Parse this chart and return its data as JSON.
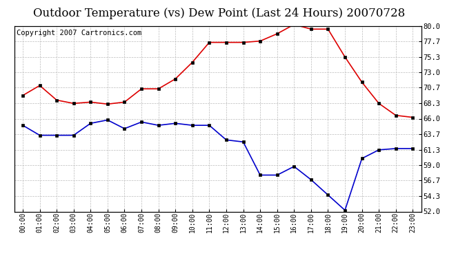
{
  "title": "Outdoor Temperature (vs) Dew Point (Last 24 Hours) 20070728",
  "copyright": "Copyright 2007 Cartronics.com",
  "x_labels": [
    "00:00",
    "01:00",
    "02:00",
    "03:00",
    "04:00",
    "05:00",
    "06:00",
    "07:00",
    "08:00",
    "09:00",
    "10:00",
    "11:00",
    "12:00",
    "13:00",
    "14:00",
    "15:00",
    "16:00",
    "17:00",
    "18:00",
    "19:00",
    "20:00",
    "21:00",
    "22:00",
    "23:00"
  ],
  "temp_values": [
    69.5,
    71.0,
    68.8,
    68.3,
    68.5,
    68.2,
    68.5,
    70.5,
    70.5,
    72.0,
    74.5,
    77.5,
    77.5,
    77.5,
    77.7,
    78.8,
    80.2,
    79.5,
    79.5,
    75.3,
    71.5,
    68.3,
    66.5,
    66.2
  ],
  "dew_values": [
    65.0,
    63.5,
    63.5,
    63.5,
    65.3,
    65.8,
    64.5,
    65.5,
    65.0,
    65.3,
    65.0,
    65.0,
    62.8,
    62.5,
    57.5,
    57.5,
    58.8,
    56.8,
    54.5,
    52.2,
    60.0,
    61.3,
    61.5,
    61.5
  ],
  "temp_color": "#dd0000",
  "dew_color": "#0000cc",
  "bg_color": "#ffffff",
  "plot_bg_color": "#ffffff",
  "grid_color": "#bbbbbb",
  "ylim": [
    52.0,
    80.0
  ],
  "yticks": [
    52.0,
    54.3,
    56.7,
    59.0,
    61.3,
    63.7,
    66.0,
    68.3,
    70.7,
    73.0,
    75.3,
    77.7,
    80.0
  ],
  "title_fontsize": 12,
  "copyright_fontsize": 7.5
}
